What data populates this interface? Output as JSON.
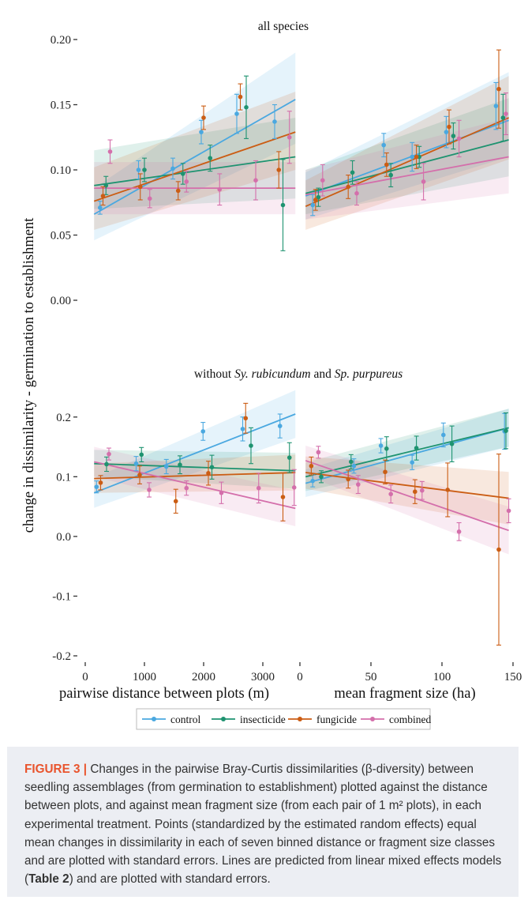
{
  "figure": {
    "panel_titles": [
      "all species",
      "without Sy. rubicundum and Sp. purpureus"
    ],
    "title_bottom_parts": {
      "prefix": "without ",
      "sp1": "Sy. rubicundum",
      "mid": " and ",
      "sp2": "Sp. purpureus"
    },
    "ylabel": "change in dissimilarity - germination to establishment",
    "xlabels": [
      "pairwise distance between plots (m)",
      "mean fragment size (ha)"
    ],
    "top_yticks": [
      "0.20",
      "0.15",
      "0.10",
      "0.05",
      "0.00"
    ],
    "bottom_yticks": [
      "0.2",
      "0.1",
      "0.0",
      "-0.1",
      "-0.2"
    ],
    "x_left_ticks": [
      "0",
      "1000",
      "2000",
      "3000"
    ],
    "x_right_ticks": [
      "0",
      "50",
      "100",
      "150"
    ],
    "legend": [
      {
        "name": "control",
        "color": "#4aa8e0"
      },
      {
        "name": "insecticide",
        "color": "#1e9370"
      },
      {
        "name": "fungicide",
        "color": "#cb5d14"
      },
      {
        "name": "combined",
        "color": "#d46fab"
      }
    ]
  },
  "caption": {
    "label": "FIGURE 3 |",
    "text_before_table": " Changes in the pairwise Bray-Curtis dissimilarities (β-diversity) between seedling assemblages (from germination to establishment) plotted against the distance between plots, and against mean fragment size (from each pair of 1 m² plots), in each experimental treatment. Points (standardized by the estimated random effects) equal mean changes in dissimilarity in each of seven binned distance or fragment size classes and are plotted with standard errors. Lines are predicted from linear mixed effects models (",
    "table_ref": "Table 2",
    "text_after_table": ") and are plotted with standard errors."
  },
  "chart_data": [
    {
      "type": "scatter",
      "title": "all species",
      "xlabel": "pairwise distance between plots (m)",
      "ylabel": "change in dissimilarity - germination to establishment",
      "xlim": [
        0,
        3600
      ],
      "ylim": [
        0,
        0.2
      ],
      "series": [
        {
          "name": "control",
          "color": "#4aa8e0",
          "points": [
            [
              250,
              0.071,
              0.005
            ],
            [
              900,
              0.1,
              0.007
            ],
            [
              1480,
              0.101,
              0.008
            ],
            [
              1960,
              0.129,
              0.009
            ],
            [
              2560,
              0.143,
              0.015
            ],
            [
              3200,
              0.137,
              0.013
            ]
          ],
          "line": [
            [
              150,
              0.066
            ],
            [
              3550,
              0.154
            ]
          ],
          "band": [
            [
              150,
              0.046,
              0.086
            ],
            [
              3550,
              0.12,
              0.19
            ]
          ]
        },
        {
          "name": "insecticide",
          "color": "#1e9370",
          "points": [
            [
              350,
              0.088,
              0.007
            ],
            [
              1000,
              0.1,
              0.009
            ],
            [
              1650,
              0.097,
              0.008
            ],
            [
              2110,
              0.109,
              0.01
            ],
            [
              2720,
              0.148,
              0.024
            ],
            [
              3340,
              0.073,
              0.035
            ]
          ],
          "line": [
            [
              150,
              0.088
            ],
            [
              3550,
              0.11
            ]
          ],
          "band": [
            [
              150,
              0.07,
              0.115
            ],
            [
              3550,
              0.078,
              0.14
            ]
          ]
        },
        {
          "name": "fungicide",
          "color": "#cb5d14",
          "points": [
            [
              300,
              0.08,
              0.007
            ],
            [
              930,
              0.087,
              0.01
            ],
            [
              1570,
              0.084,
              0.007
            ],
            [
              2000,
              0.14,
              0.009
            ],
            [
              2620,
              0.156,
              0.01
            ],
            [
              3270,
              0.1,
              0.014
            ]
          ],
          "line": [
            [
              150,
              0.076
            ],
            [
              3550,
              0.129
            ]
          ],
          "band": [
            [
              150,
              0.054,
              0.102
            ],
            [
              3550,
              0.1,
              0.16
            ]
          ]
        },
        {
          "name": "combined",
          "color": "#d46fab",
          "points": [
            [
              420,
              0.114,
              0.009
            ],
            [
              1090,
              0.078,
              0.007
            ],
            [
              1710,
              0.091,
              0.008
            ],
            [
              2270,
              0.085,
              0.012
            ],
            [
              2880,
              0.092,
              0.015
            ],
            [
              3450,
              0.125,
              0.02
            ]
          ],
          "line": [
            [
              150,
              0.086
            ],
            [
              3550,
              0.086
            ]
          ],
          "band": [
            [
              150,
              0.066,
              0.106
            ],
            [
              3550,
              0.066,
              0.106
            ]
          ]
        }
      ]
    },
    {
      "type": "scatter",
      "title": "all species",
      "xlabel": "mean fragment size (ha)",
      "xlim": [
        0,
        150
      ],
      "ylim": [
        0,
        0.2
      ],
      "series": [
        {
          "name": "control",
          "color": "#4aa8e0",
          "points": [
            [
              9,
              0.073,
              0.008
            ],
            [
              59,
              0.119,
              0.009
            ],
            [
              79,
              0.11,
              0.011
            ],
            [
              103,
              0.129,
              0.012
            ],
            [
              138,
              0.149,
              0.018
            ]
          ],
          "line": [
            [
              4,
              0.08
            ],
            [
              147,
              0.138
            ]
          ],
          "band": [
            [
              4,
              0.062,
              0.098
            ],
            [
              147,
              0.11,
              0.175
            ]
          ]
        },
        {
          "name": "insecticide",
          "color": "#1e9370",
          "points": [
            [
              13,
              0.079,
              0.007
            ],
            [
              37,
              0.098,
              0.009
            ],
            [
              64,
              0.096,
              0.009
            ],
            [
              84,
              0.11,
              0.008
            ],
            [
              108,
              0.126,
              0.01
            ],
            [
              143,
              0.14,
              0.018
            ]
          ],
          "line": [
            [
              4,
              0.082
            ],
            [
              147,
              0.123
            ]
          ],
          "band": [
            [
              4,
              0.066,
              0.1
            ],
            [
              147,
              0.095,
              0.155
            ]
          ]
        },
        {
          "name": "fungicide",
          "color": "#cb5d14",
          "points": [
            [
              11,
              0.077,
              0.008
            ],
            [
              34,
              0.087,
              0.009
            ],
            [
              61,
              0.104,
              0.009
            ],
            [
              82,
              0.11,
              0.009
            ],
            [
              105,
              0.133,
              0.013
            ],
            [
              140,
              0.162,
              0.03
            ]
          ],
          "line": [
            [
              4,
              0.072
            ],
            [
              147,
              0.14
            ]
          ],
          "band": [
            [
              4,
              0.054,
              0.092
            ],
            [
              147,
              0.108,
              0.172
            ]
          ]
        },
        {
          "name": "combined",
          "color": "#d46fab",
          "points": [
            [
              16,
              0.092,
              0.012
            ],
            [
              40,
              0.082,
              0.009
            ],
            [
              87,
              0.091,
              0.014
            ],
            [
              112,
              0.124,
              0.014
            ],
            [
              145,
              0.143,
              0.016
            ]
          ],
          "line": [
            [
              4,
              0.081
            ],
            [
              147,
              0.11
            ]
          ],
          "band": [
            [
              4,
              0.062,
              0.1
            ],
            [
              147,
              0.082,
              0.14
            ]
          ]
        }
      ]
    },
    {
      "type": "scatter",
      "title": "without Sy. rubicundum and Sp. purpureus",
      "xlabel": "pairwise distance between plots (m)",
      "ylabel": "change in dissimilarity - germination to establishment",
      "xlim": [
        0,
        3600
      ],
      "ylim": [
        -0.2,
        0.25
      ],
      "series": [
        {
          "name": "control",
          "color": "#4aa8e0",
          "points": [
            [
              190,
              0.083,
              0.01
            ],
            [
              860,
              0.122,
              0.012
            ],
            [
              1370,
              0.117,
              0.012
            ],
            [
              1990,
              0.176,
              0.015
            ],
            [
              2660,
              0.18,
              0.02
            ],
            [
              3290,
              0.185,
              0.02
            ]
          ],
          "line": [
            [
              150,
              0.073
            ],
            [
              3550,
              0.205
            ]
          ],
          "band": [
            [
              150,
              0.048,
              0.098
            ],
            [
              3550,
              0.165,
              0.245
            ]
          ]
        },
        {
          "name": "insecticide",
          "color": "#1e9370",
          "points": [
            [
              360,
              0.121,
              0.012
            ],
            [
              950,
              0.137,
              0.012
            ],
            [
              1600,
              0.12,
              0.015
            ],
            [
              2140,
              0.116,
              0.02
            ],
            [
              2800,
              0.152,
              0.03
            ],
            [
              3450,
              0.132,
              0.025
            ]
          ],
          "line": [
            [
              150,
              0.122
            ],
            [
              3550,
              0.11
            ]
          ],
          "band": [
            [
              150,
              0.1,
              0.145
            ],
            [
              3550,
              0.08,
              0.14
            ]
          ]
        },
        {
          "name": "fungicide",
          "color": "#cb5d14",
          "points": [
            [
              260,
              0.09,
              0.012
            ],
            [
              920,
              0.103,
              0.015
            ],
            [
              1530,
              0.059,
              0.02
            ],
            [
              2080,
              0.106,
              0.02
            ],
            [
              2710,
              0.198,
              0.025
            ],
            [
              3340,
              0.066,
              0.04
            ]
          ],
          "line": [
            [
              150,
              0.097
            ],
            [
              3550,
              0.107
            ]
          ],
          "band": [
            [
              150,
              0.073,
              0.122
            ],
            [
              3550,
              0.077,
              0.137
            ]
          ]
        },
        {
          "name": "combined",
          "color": "#d46fab",
          "points": [
            [
              400,
              0.138,
              0.01
            ],
            [
              1080,
              0.078,
              0.012
            ],
            [
              1710,
              0.081,
              0.012
            ],
            [
              2300,
              0.073,
              0.018
            ],
            [
              2930,
              0.081,
              0.025
            ],
            [
              3530,
              0.082,
              0.03
            ]
          ],
          "line": [
            [
              150,
              0.125
            ],
            [
              3550,
              0.047
            ]
          ],
          "band": [
            [
              150,
              0.1,
              0.15
            ],
            [
              3550,
              0.017,
              0.077
            ]
          ]
        }
      ]
    },
    {
      "type": "scatter",
      "title": "without Sy. rubicundum and Sp. purpureus",
      "xlabel": "mean fragment size (ha)",
      "xlim": [
        0,
        150
      ],
      "ylim": [
        -0.2,
        0.25
      ],
      "series": [
        {
          "name": "control",
          "color": "#4aa8e0",
          "points": [
            [
              9,
              0.093,
              0.01
            ],
            [
              38,
              0.118,
              0.012
            ],
            [
              57,
              0.152,
              0.012
            ],
            [
              79,
              0.124,
              0.012
            ],
            [
              101,
              0.17,
              0.02
            ],
            [
              144,
              0.176,
              0.03
            ]
          ],
          "line": [
            [
              4,
              0.089
            ],
            [
              147,
              0.182
            ]
          ],
          "band": [
            [
              4,
              0.066,
              0.112
            ],
            [
              147,
              0.15,
              0.214
            ]
          ]
        },
        {
          "name": "insecticide",
          "color": "#1e9370",
          "points": [
            [
              15,
              0.1,
              0.01
            ],
            [
              36,
              0.125,
              0.012
            ],
            [
              61,
              0.147,
              0.02
            ],
            [
              82,
              0.148,
              0.02
            ],
            [
              107,
              0.155,
              0.03
            ],
            [
              145,
              0.177,
              0.03
            ]
          ],
          "line": [
            [
              4,
              0.1
            ],
            [
              147,
              0.182
            ]
          ],
          "band": [
            [
              4,
              0.076,
              0.124
            ],
            [
              147,
              0.15,
              0.214
            ]
          ]
        },
        {
          "name": "fungicide",
          "color": "#cb5d14",
          "points": [
            [
              8,
              0.118,
              0.015
            ],
            [
              34,
              0.096,
              0.015
            ],
            [
              60,
              0.108,
              0.02
            ],
            [
              81,
              0.075,
              0.02
            ],
            [
              104,
              0.078,
              0.045
            ],
            [
              140,
              -0.022,
              0.16
            ]
          ],
          "line": [
            [
              4,
              0.107
            ],
            [
              147,
              0.064
            ]
          ],
          "band": [
            [
              4,
              0.08,
              0.134
            ],
            [
              147,
              0.02,
              0.108
            ]
          ]
        },
        {
          "name": "combined",
          "color": "#d46fab",
          "points": [
            [
              13,
              0.141,
              0.01
            ],
            [
              41,
              0.087,
              0.015
            ],
            [
              64,
              0.071,
              0.015
            ],
            [
              86,
              0.077,
              0.015
            ],
            [
              112,
              0.008,
              0.015
            ],
            [
              147,
              0.043,
              0.02
            ]
          ],
          "line": [
            [
              4,
              0.127
            ],
            [
              147,
              0.01
            ]
          ],
          "band": [
            [
              4,
              0.102,
              0.152
            ],
            [
              147,
              -0.03,
              0.05
            ]
          ]
        }
      ]
    }
  ]
}
